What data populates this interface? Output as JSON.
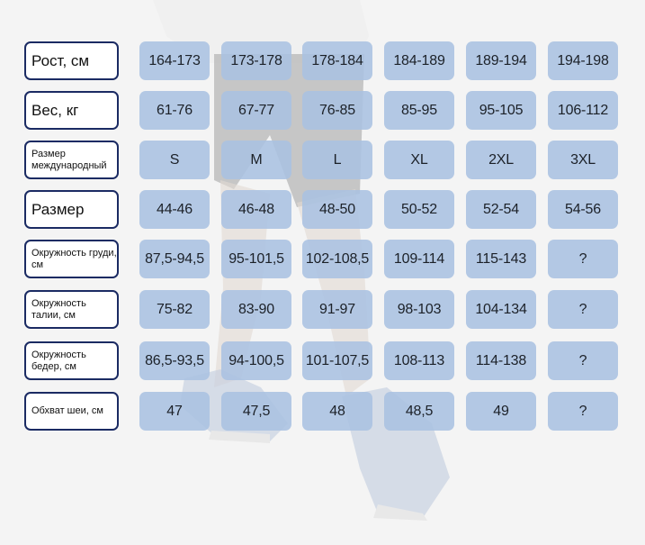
{
  "colors": {
    "label_border": "#1b2b63",
    "cell_fill": "#aac2e1",
    "text": "#1c2128"
  },
  "rows": [
    {
      "label": "Рост, см",
      "values": [
        "164-173",
        "173-178",
        "178-184",
        "184-189",
        "189-194",
        "194-198"
      ]
    },
    {
      "label": "Вес, кг",
      "values": [
        "61-76",
        "67-77",
        "76-85",
        "85-95",
        "95-105",
        "106-112"
      ]
    },
    {
      "label": "Размер международный",
      "values": [
        "S",
        "M",
        "L",
        "XL",
        "2XL",
        "3XL"
      ]
    },
    {
      "label": "Размер",
      "values": [
        "44-46",
        "46-48",
        "48-50",
        "50-52",
        "52-54",
        "54-56"
      ]
    },
    {
      "label": "Окружность груди, см",
      "values": [
        "87,5-94,5",
        "95-101,5",
        "102-108,5",
        "109-114",
        "115-143",
        "?"
      ]
    },
    {
      "label": "Окружность талии, см",
      "values": [
        "75-82",
        "83-90",
        "91-97",
        "98-103",
        "104-134",
        "?"
      ]
    },
    {
      "label": "Окружность бедер, см",
      "values": [
        "86,5-93,5",
        "94-100,5",
        "101-107,5",
        "108-113",
        "114-138",
        "?"
      ]
    },
    {
      "label": "Обхват шеи, см",
      "values": [
        "47",
        "47,5",
        "48",
        "48,5",
        "49",
        "?"
      ]
    }
  ]
}
